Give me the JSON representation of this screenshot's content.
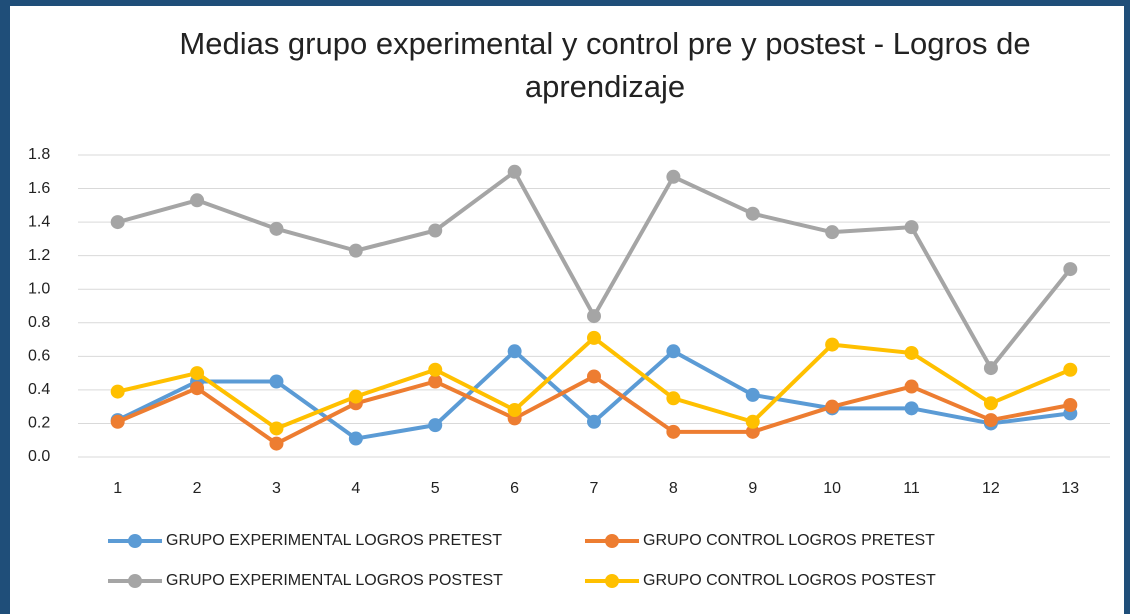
{
  "chart_data": {
    "type": "line",
    "title": "Medias grupo experimental y control pre y postest - Logros de aprendizaje",
    "categories": [
      "1",
      "2",
      "3",
      "4",
      "5",
      "6",
      "7",
      "8",
      "9",
      "10",
      "11",
      "12",
      "13"
    ],
    "series": [
      {
        "name": "GRUPO EXPERIMENTAL LOGROS PRETEST",
        "color": "#5b9bd5",
        "values": [
          0.22,
          0.45,
          0.45,
          0.11,
          0.19,
          0.63,
          0.21,
          0.63,
          0.37,
          0.29,
          0.29,
          0.2,
          0.26
        ]
      },
      {
        "name": "GRUPO CONTROL LOGROS PRETEST",
        "color": "#ed7d31",
        "values": [
          0.21,
          0.41,
          0.08,
          0.32,
          0.45,
          0.23,
          0.48,
          0.15,
          0.15,
          0.3,
          0.42,
          0.22,
          0.31
        ]
      },
      {
        "name": "GRUPO EXPERIMENTAL LOGROS POSTEST",
        "color": "#a5a5a5",
        "values": [
          1.4,
          1.53,
          1.36,
          1.23,
          1.35,
          1.7,
          0.84,
          1.67,
          1.45,
          1.34,
          1.37,
          0.53,
          1.12
        ]
      },
      {
        "name": "GRUPO CONTROL LOGROS POSTEST",
        "color": "#ffc000",
        "values": [
          0.39,
          0.5,
          0.17,
          0.36,
          0.52,
          0.28,
          0.71,
          0.35,
          0.21,
          0.67,
          0.62,
          0.32,
          0.52
        ]
      }
    ],
    "ylim": [
      0,
      1.8
    ],
    "yticks": [
      {
        "value": 0,
        "label": "0.0"
      },
      0.2,
      0.4,
      0.6,
      0.8,
      {
        "value": 1,
        "label": "1.0"
      },
      1.2,
      1.4,
      1.6,
      1.8
    ],
    "grid": true
  }
}
